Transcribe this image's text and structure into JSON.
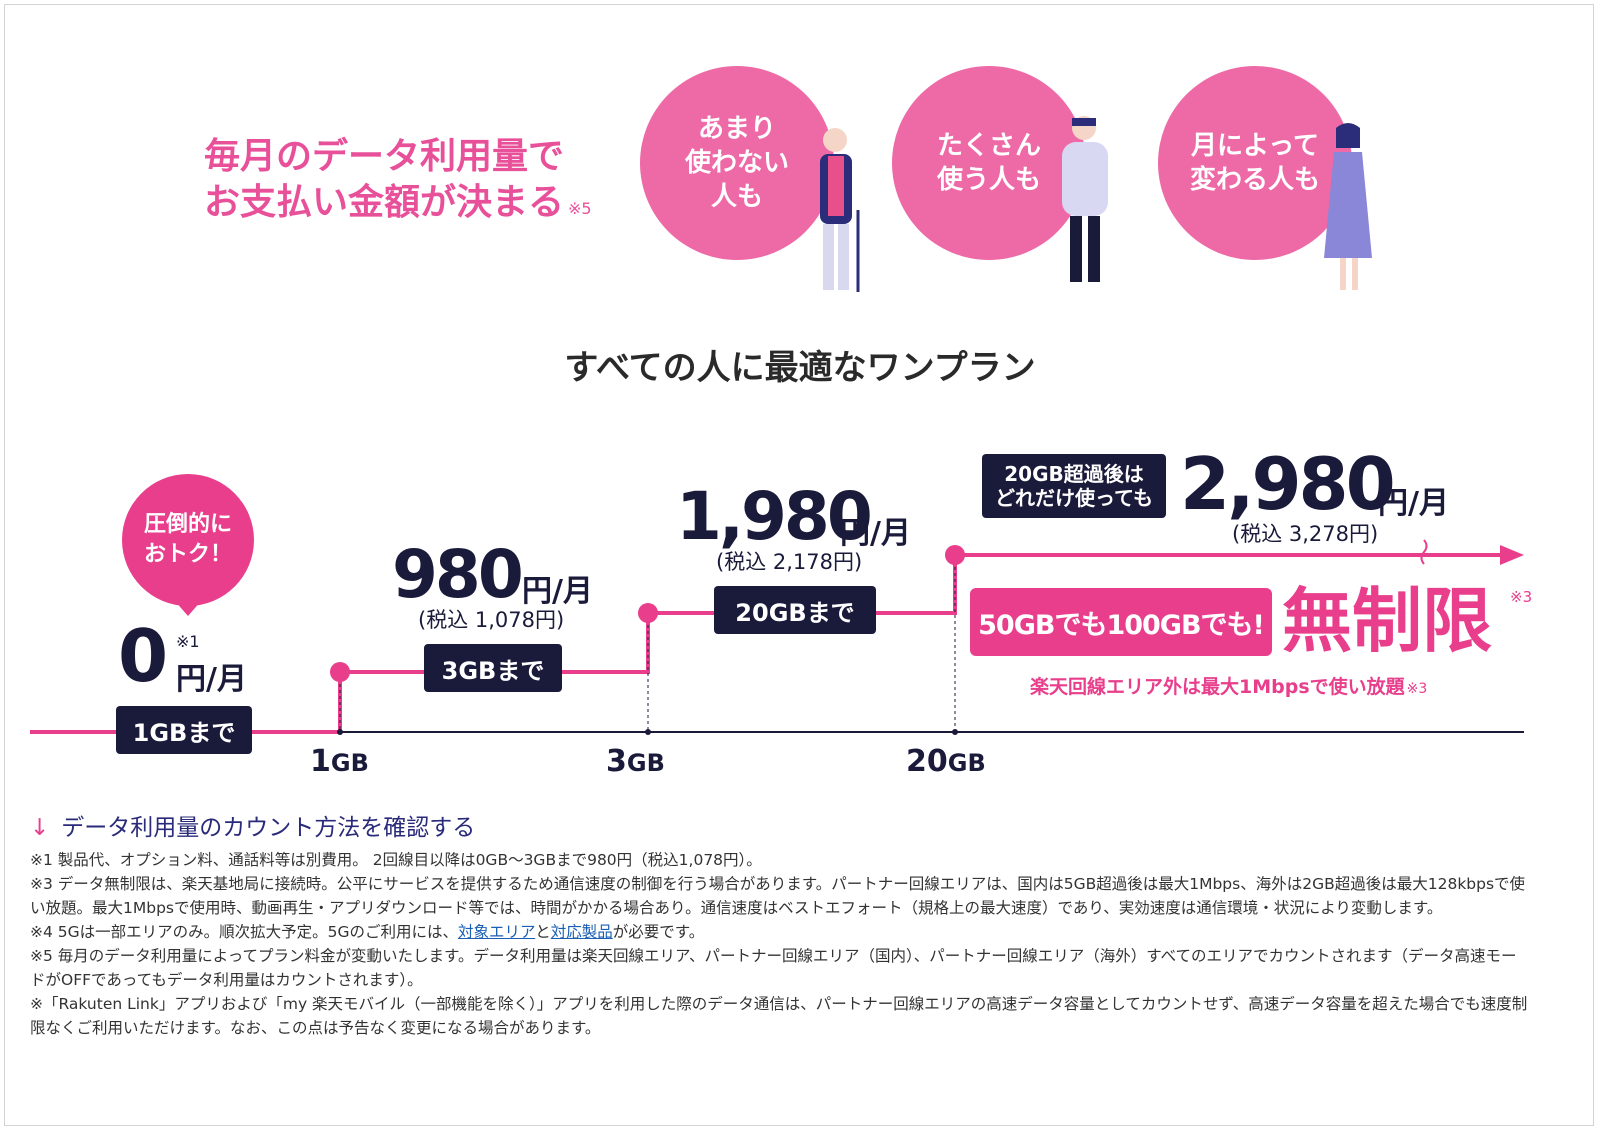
{
  "headline": {
    "line1": "毎月のデータ利用量で",
    "line2": "お支払い金額が決まる",
    "note": "※5"
  },
  "bubbles": [
    {
      "text": "あまり\n使わない\n人も"
    },
    {
      "text": "たくさん\n使う人も"
    },
    {
      "text": "月によって\n変わる人も"
    }
  ],
  "subtitle": "すべての人に最適なワンプラン",
  "colors": {
    "brand_pink": "#e83e8c",
    "navy": "#1a1a3a",
    "bubble_pink": "#ee6aa7"
  },
  "tiers": [
    {
      "badge": "圧倒的に\nおトク！",
      "price": "0",
      "note": "※1",
      "unit": "円/月",
      "tag": "1GBまで"
    },
    {
      "price": "980",
      "unit": "円/月",
      "tax": "(税込 1,078円)",
      "tag": "3GBまで"
    },
    {
      "price": "1,980",
      "unit": "円/月",
      "tax": "(税込 2,178円)",
      "tag": "20GBまで"
    },
    {
      "lead": "20GB超過後は\nどれだけ使っても",
      "price": "2,980",
      "unit": "円/月",
      "tax": "(税込 3,278円)",
      "banner": "50GBでも100GBでも!",
      "unlimited": "無制限",
      "unlimited_note": "※3",
      "sub": "楽天回線エリア外は最大1Mbpsで使い放題",
      "sub_note": "※3"
    }
  ],
  "axis_labels": [
    {
      "num": "1",
      "unit": "GB"
    },
    {
      "num": "3",
      "unit": "GB"
    },
    {
      "num": "20",
      "unit": "GB"
    }
  ],
  "link": {
    "arrow": "↓",
    "text": "データ利用量のカウント方法を確認する"
  },
  "notes": {
    "n1": "※1 製品代、オプション料、通話料等は別費用。 2回線目以降は0GB〜3GBまで980円（税込1,078円）。",
    "n3": "※3 データ無制限は、楽天基地局に接続時。公平にサービスを提供するため通信速度の制御を行う場合があります。パートナー回線エリアは、国内は5GB超過後は最大1Mbps、海外は2GB超過後は最大128kbpsで使い放題。最大1Mbpsで使用時、動画再生・アプリダウンロード等では、時間がかかる場合あり。通信速度はベストエフォート（規格上の最大速度）であり、実効速度は通信環境・状況により変動します。",
    "n4_pre": "※4 5Gは一部エリアのみ。順次拡大予定。5Gのご利用には、",
    "n4_link1": "対象エリア",
    "n4_mid": "と",
    "n4_link2": "対応製品",
    "n4_post": "が必要です。",
    "n5": "※5 毎月のデータ利用量によってプラン料金が変動いたします。データ利用量は楽天回線エリア、パートナー回線エリア（国内）、パートナー回線エリア（海外）すべてのエリアでカウントされます（データ高速モードがOFFであってもデータ利用量はカウントされます）。",
    "n6": "※「Rakuten Link」アプリおよび「my 楽天モバイル（一部機能を除く）」アプリを利用した際のデータ通信は、パートナー回線エリアの高速データ容量としてカウントせず、高速データ容量を超えた場合でも速度制限なくご利用いただけます。なお、この点は予告なく変更になる場合があります。"
  }
}
